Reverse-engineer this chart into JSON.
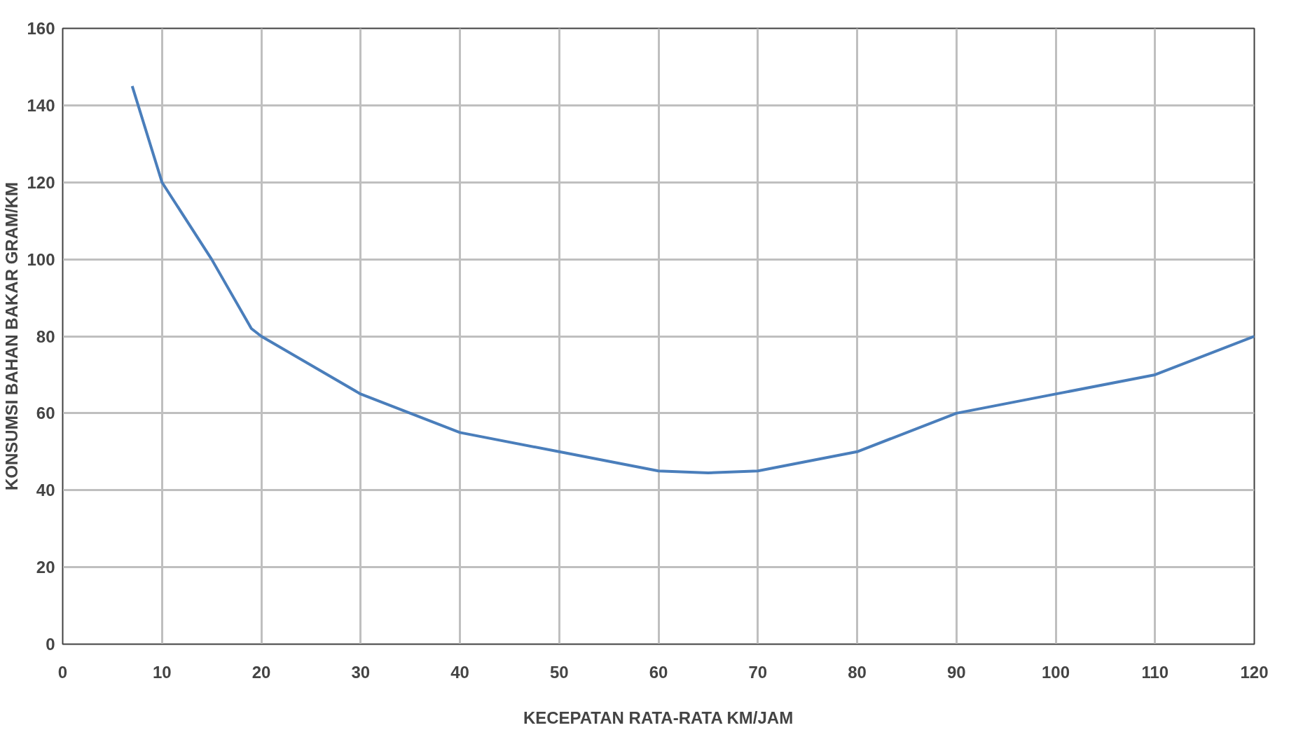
{
  "chart_data": {
    "type": "line",
    "xlabel": "KECEPATAN RATA-RATA KM/JAM",
    "ylabel": "KONSUMSI BAHAN BAKAR GRAM/KM",
    "x": [
      7,
      10,
      15,
      19,
      20,
      30,
      40,
      50,
      60,
      65,
      70,
      80,
      90,
      100,
      110,
      120
    ],
    "series": [
      {
        "color": "#4a7ebb",
        "values": [
          145,
          120,
          100,
          82,
          80,
          65,
          55,
          50,
          45,
          44.5,
          45,
          50,
          60,
          65,
          70,
          80
        ]
      }
    ],
    "xlim": [
      0,
      120
    ],
    "ylim": [
      0,
      160
    ],
    "xticks": [
      0,
      10,
      20,
      30,
      40,
      50,
      60,
      70,
      80,
      90,
      100,
      110,
      120
    ],
    "yticks": [
      0,
      20,
      40,
      60,
      80,
      100,
      120,
      140,
      160
    ],
    "grid": true,
    "marker": "none",
    "line_style": "solid"
  }
}
